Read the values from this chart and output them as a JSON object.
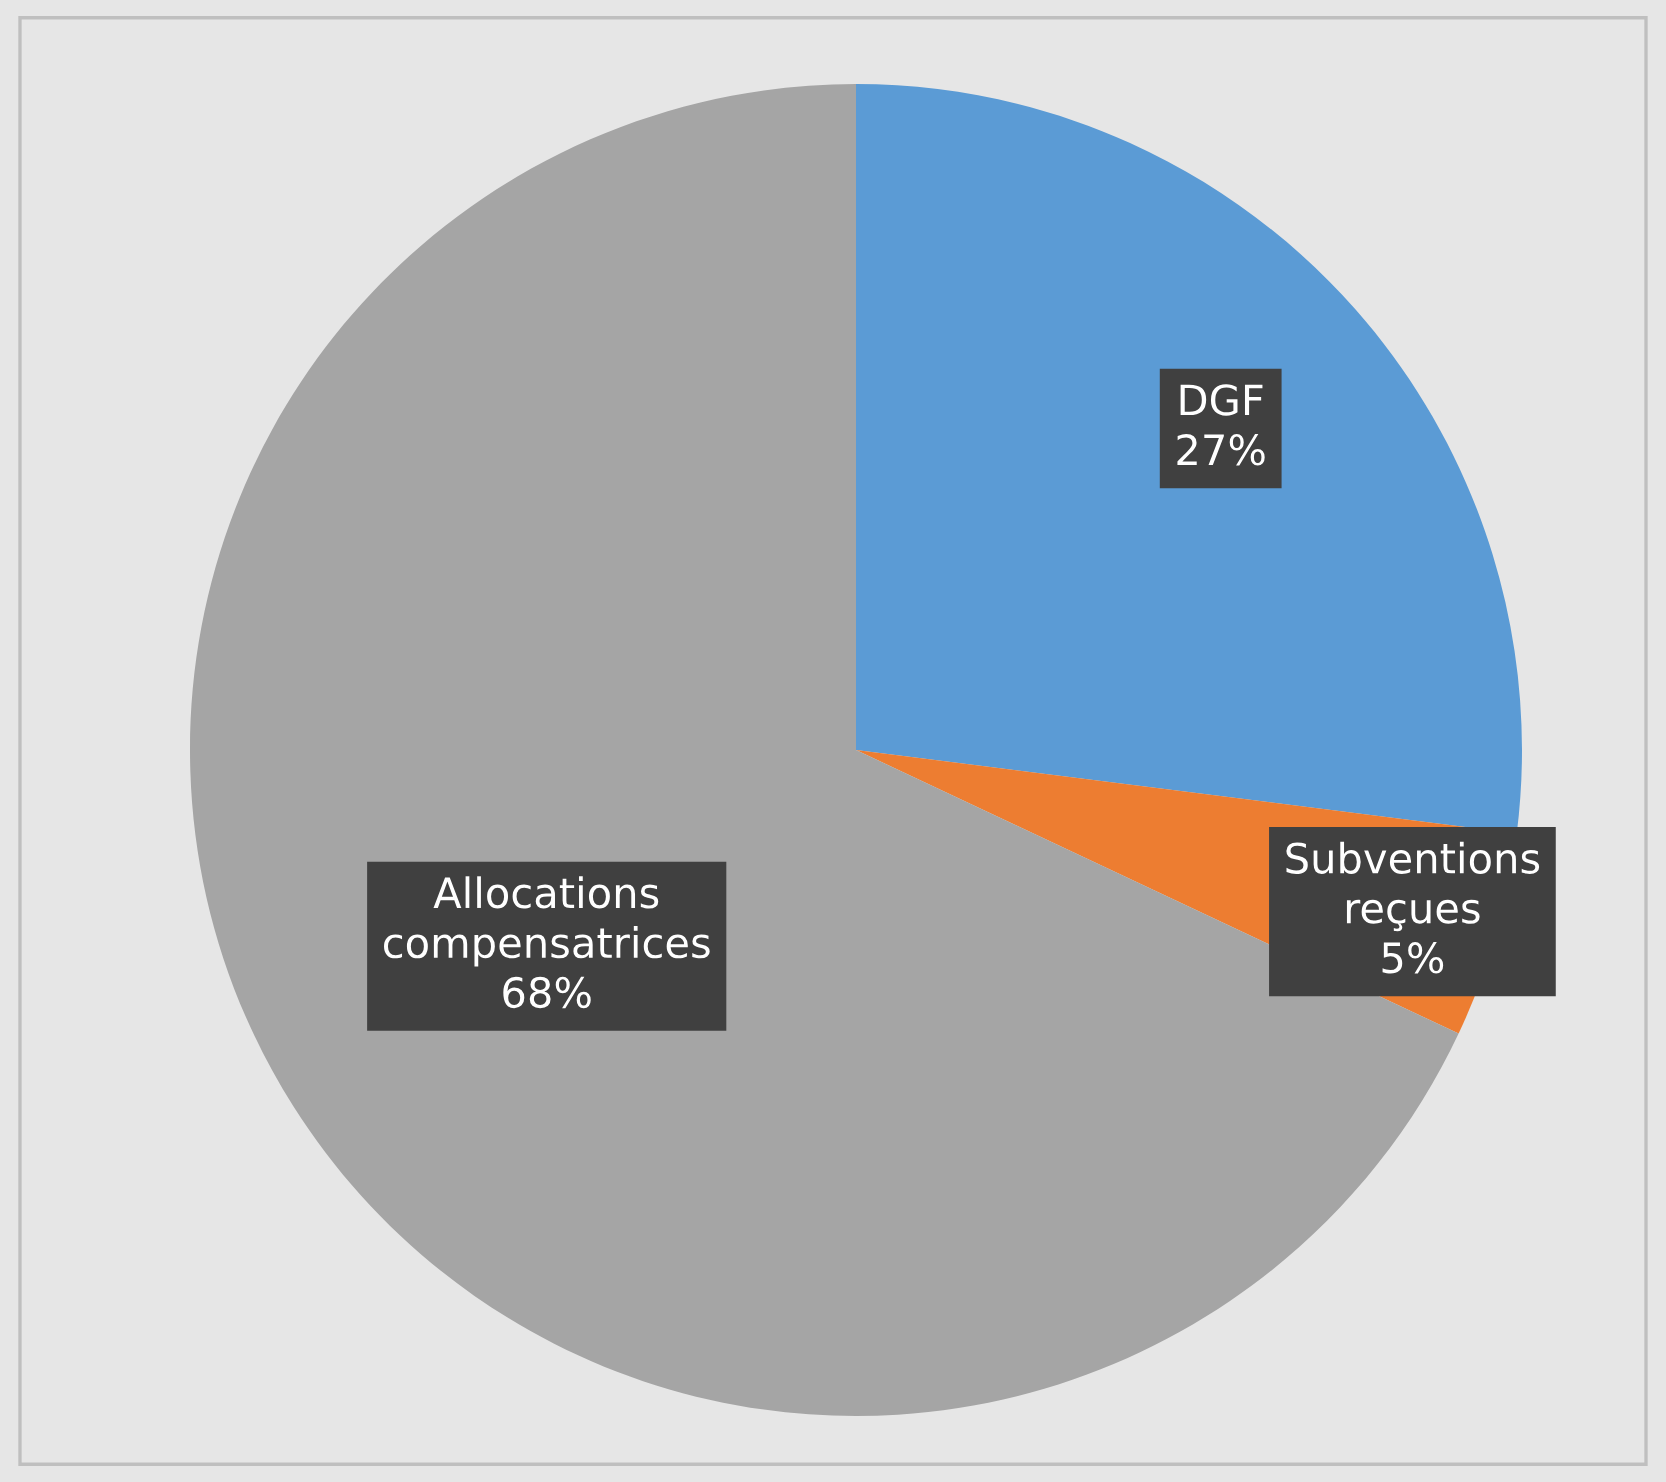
{
  "chart_data": {
    "type": "pie",
    "categories": [
      "DGF",
      "Subventions reçues",
      "Allocations compensatrices"
    ],
    "values": [
      27,
      5,
      68
    ],
    "colors": [
      "#5b9bd5",
      "#ed7d31",
      "#a5a5a5"
    ],
    "value_labels": [
      "27%",
      "5%",
      "68%"
    ],
    "legend": false
  }
}
